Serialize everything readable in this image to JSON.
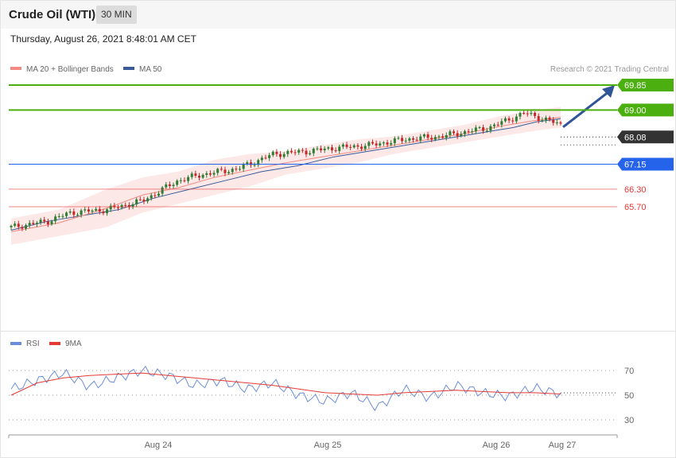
{
  "header": {
    "title": "Crude Oil (WTI)",
    "timeframe": "30 MIN",
    "datetime": "Thursday, August 26, 2021 8:48:01 AM CET"
  },
  "legend": {
    "ma20_label": "MA 20 + Bollinger Bands",
    "ma50_label": "MA 50",
    "copyright": "Research © 2021 Trading Central",
    "rsi_label": "RSI",
    "rsi9_label": "9MA"
  },
  "colors": {
    "ma20": "#f28b82",
    "band": "#fde4e4",
    "ma50": "#3a5a9a",
    "rsi": "#6b8fd6",
    "rsi9": "#e53935",
    "bull": "#2e7d32",
    "bear": "#c62828",
    "resistance": "#4caf10",
    "pivot": "#2563eb",
    "support": "#e53935",
    "current": "#333333"
  },
  "chart_data": [
    {
      "type": "candlestick",
      "ylim": [
        63.3,
        70.3
      ],
      "x_ticks": [
        "Aug 24",
        "Aug 25",
        "Aug 26",
        "Aug 27"
      ],
      "levels": [
        {
          "value": 69.85,
          "label": "69.85",
          "kind": "resistance"
        },
        {
          "value": 69.0,
          "label": "69.00",
          "kind": "resistance"
        },
        {
          "value": 68.08,
          "label": "68.08",
          "kind": "current"
        },
        {
          "value": 67.15,
          "label": "67.15",
          "kind": "pivot"
        },
        {
          "value": 66.3,
          "label": "66.30",
          "kind": "support"
        },
        {
          "value": 65.7,
          "label": "65.70",
          "kind": "support"
        }
      ],
      "price_path": [
        [
          0,
          65.0
        ],
        [
          3,
          65.2
        ],
        [
          5,
          65.5
        ],
        [
          8,
          65.6
        ],
        [
          11,
          65.9
        ],
        [
          14,
          66.6
        ],
        [
          16,
          66.8
        ],
        [
          19,
          67.0
        ],
        [
          22,
          67.5
        ],
        [
          25,
          67.6
        ],
        [
          27,
          67.7
        ],
        [
          30,
          67.8
        ],
        [
          33,
          68.0
        ],
        [
          36,
          68.1
        ],
        [
          40,
          68.4
        ],
        [
          43,
          68.9
        ],
        [
          46,
          68.5
        ]
      ],
      "overlay_path": [
        [
          0,
          64.9
        ],
        [
          3,
          65.2
        ],
        [
          6,
          65.4
        ],
        [
          9,
          65.6
        ],
        [
          12,
          66.0
        ],
        [
          15,
          66.3
        ],
        [
          18,
          66.6
        ],
        [
          21,
          66.9
        ],
        [
          24,
          67.1
        ],
        [
          27,
          67.4
        ],
        [
          30,
          67.6
        ],
        [
          33,
          67.8
        ],
        [
          36,
          68.0
        ],
        [
          39,
          68.2
        ],
        [
          42,
          68.4
        ],
        [
          44,
          68.6
        ],
        [
          46,
          68.7
        ]
      ],
      "band_upper": [
        [
          0,
          65.3
        ],
        [
          4,
          65.6
        ],
        [
          8,
          66.3
        ],
        [
          11,
          66.7
        ],
        [
          14,
          66.9
        ],
        [
          17,
          67.3
        ],
        [
          20,
          67.5
        ],
        [
          23,
          67.6
        ],
        [
          26,
          67.8
        ],
        [
          29,
          68.0
        ],
        [
          32,
          68.1
        ],
        [
          35,
          68.3
        ],
        [
          38,
          68.5
        ],
        [
          41,
          68.8
        ],
        [
          44,
          69.0
        ],
        [
          46,
          69.1
        ]
      ],
      "band_lower": [
        [
          0,
          64.4
        ],
        [
          4,
          64.7
        ],
        [
          8,
          65.0
        ],
        [
          11,
          65.5
        ],
        [
          14,
          65.8
        ],
        [
          17,
          66.1
        ],
        [
          20,
          66.4
        ],
        [
          23,
          66.8
        ],
        [
          26,
          67.0
        ],
        [
          29,
          67.2
        ],
        [
          32,
          67.5
        ],
        [
          35,
          67.7
        ],
        [
          38,
          67.9
        ],
        [
          41,
          68.1
        ],
        [
          44,
          68.3
        ],
        [
          46,
          68.4
        ]
      ]
    },
    {
      "type": "line",
      "ylim": [
        20,
        80
      ],
      "y_ticks": [
        70,
        50,
        30
      ],
      "series": [
        {
          "name": "RSI",
          "values": [
            55,
            62,
            68,
            57,
            64,
            70,
            66,
            58,
            62,
            55,
            60,
            50,
            45,
            52,
            40,
            55,
            48,
            58,
            52,
            49,
            56,
            51
          ]
        },
        {
          "name": "9MA",
          "values": [
            50,
            60,
            64,
            66,
            67,
            68,
            66,
            64,
            62,
            60,
            58,
            55,
            52,
            51,
            50,
            52,
            53,
            54,
            53,
            52,
            52,
            51
          ]
        }
      ]
    }
  ]
}
